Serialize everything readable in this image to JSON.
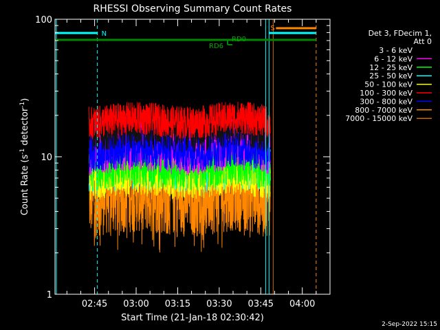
{
  "chart_data": {
    "type": "line",
    "title": "RHESSI Observing Summary Count Rates",
    "xlabel": "Start Time (21-Jan-18 02:30:42)",
    "ylabel": "Count Rate (s",
    "ylabel_sup": "-1",
    "ylabel_tail": " detector",
    "ylabel_sup2": "-1",
    "ylabel_end": ")",
    "y_scale": "log",
    "ylim": [
      1,
      100
    ],
    "xlim": [
      "02:30:42",
      "04:10:00"
    ],
    "y_ticks": [
      {
        "value": 1,
        "label": "1"
      },
      {
        "value": 10,
        "label": "10"
      },
      {
        "value": 100,
        "label": "100"
      }
    ],
    "x_ticks": [
      {
        "value": "02:45",
        "label": "02:45"
      },
      {
        "value": "03:00",
        "label": "03:00"
      },
      {
        "value": "03:15",
        "label": "03:15"
      },
      {
        "value": "03:30",
        "label": "03:30"
      },
      {
        "value": "03:45",
        "label": "03:45"
      },
      {
        "value": "04:00",
        "label": "04:00"
      }
    ],
    "legend_header": [
      "Det 3, FDecim 1,",
      "Att 0"
    ],
    "legend_placement": "right",
    "series": [
      {
        "name": "3 - 6 keV",
        "color": "#000000",
        "base": 14.5,
        "spread": 0.1
      },
      {
        "name": "6 - 12 keV",
        "color": "#ff00ff",
        "base": 11.0,
        "spread": 0.13
      },
      {
        "name": "12 - 25 keV",
        "color": "#00ff00",
        "base": 8.2,
        "spread": 0.12
      },
      {
        "name": "25 - 50 keV",
        "color": "#00ffff",
        "base": 7.2,
        "spread": 0.1
      },
      {
        "name": "50 - 100 keV",
        "color": "#ffff00",
        "base": 7.0,
        "spread": 0.12
      },
      {
        "name": "100 - 300 keV",
        "color": "#ff0000",
        "base": 17.0,
        "spread": 0.08
      },
      {
        "name": "300 - 800 keV",
        "color": "#0000ff",
        "base": 10.5,
        "spread": 0.1
      },
      {
        "name": "800 - 7000 keV",
        "color": "#ff8800",
        "base": 5.0,
        "spread": 0.2
      },
      {
        "name": "7000 - 15000 keV",
        "color": "#cc6600",
        "base": 0,
        "spread": 0
      }
    ],
    "data_interval": [
      "02:43:00",
      "03:48:30"
    ],
    "annotations": [
      {
        "label": "N",
        "color": "#00ffff",
        "at": "02:46"
      },
      {
        "label": "RD0",
        "color": "#00aa00"
      },
      {
        "label": "RD6",
        "color": "#00aa00"
      },
      {
        "label": "S",
        "color": "#ff8800",
        "at": "03:48"
      }
    ]
  },
  "footer": {
    "date": "2-Sep-2022 15:15"
  }
}
